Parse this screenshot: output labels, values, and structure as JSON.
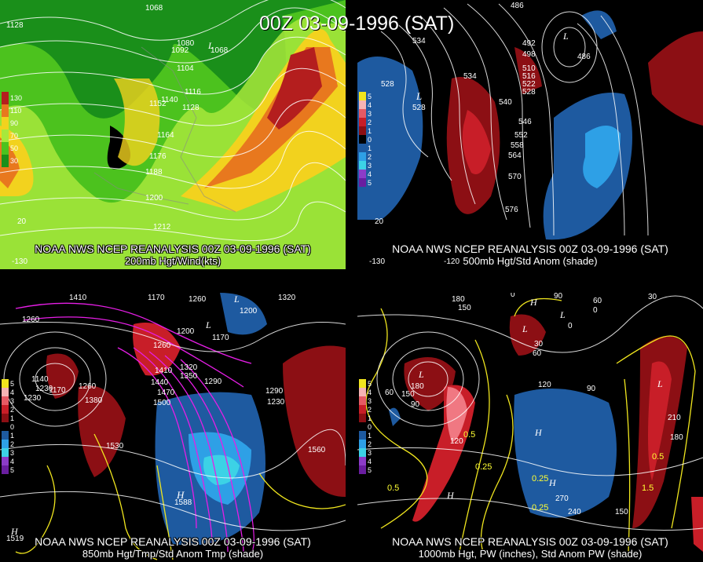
{
  "title": "00Z 03-09-1996 (SAT)",
  "panels": [
    {
      "caption_line1": "NOAA NWS NCEP REANALYSIS 00Z 03-09-1996 (SAT)",
      "caption_line2": "200mb Hgt/Wind(kts)",
      "scale": [
        "130",
        "110",
        "90",
        "70",
        "50",
        "30"
      ],
      "contour_labels": [
        "1068",
        "1128",
        "1080",
        "1092",
        "1068",
        "1104",
        "1116",
        "1140",
        "1152",
        "1128",
        "1164",
        "1176",
        "1188",
        "1200",
        "1212"
      ],
      "axis_labels": [
        "20",
        "-130"
      ]
    },
    {
      "caption_line1": "NOAA NWS NCEP REANALYSIS 00Z 03-09-1996 (SAT)",
      "caption_line2": "500mb Hgt/Std Anom (shade)",
      "scale": [
        "5",
        "4",
        "3",
        "2",
        "1",
        "0",
        "1",
        "2",
        "3",
        "4",
        "5"
      ],
      "contour_labels": [
        "486",
        "534",
        "528",
        "486",
        "492",
        "498",
        "510",
        "516",
        "522",
        "528",
        "534",
        "540",
        "546",
        "552",
        "558",
        "564",
        "570",
        "576",
        "528",
        "522"
      ],
      "axis_labels": [
        "20",
        "-130",
        "-120"
      ]
    },
    {
      "caption_line1": "NOAA NWS NCEP REANALYSIS 00Z 03-09-1996 (SAT)",
      "caption_line2": "850mb Hgt/Tmp/Std Anom Tmp (shade)",
      "scale": [
        "5",
        "4",
        "3",
        "2",
        "1",
        "0",
        "1",
        "2",
        "3",
        "4",
        "5"
      ],
      "contour_labels": [
        "1410",
        "1170",
        "1260",
        "1320",
        "1200",
        "1260",
        "1230",
        "1200",
        "1170",
        "1140",
        "1170",
        "1230",
        "1260",
        "1290",
        "1320",
        "1350",
        "1380",
        "1410",
        "1440",
        "1470",
        "1500",
        "1290",
        "1230",
        "1260",
        "1530",
        "1560",
        "1588",
        "1519"
      ],
      "axis_labels": [
        "20",
        "-130"
      ]
    },
    {
      "caption_line1": "NOAA NWS NCEP REANALYSIS 00Z 03-09-1996 (SAT)",
      "caption_line2": "1000mb Hgt, PW (inches), Std Anom PW (shade)",
      "scale": [
        "5",
        "4",
        "3",
        "2",
        "1",
        "0",
        "1",
        "2",
        "3",
        "4",
        "5"
      ],
      "contour_labels": [
        "180",
        "150",
        "0",
        "90",
        "60",
        "30",
        "0",
        "120",
        "90",
        "60",
        "30",
        "0",
        "180",
        "150",
        "60",
        "90",
        "120",
        "210",
        "180",
        "150",
        "240",
        "270"
      ],
      "pw_labels": [
        "0.5",
        "0.25",
        "0.25",
        "0.25",
        "0.5",
        "1.5",
        "0.5"
      ],
      "axis_labels": [
        "20",
        "-130"
      ]
    }
  ],
  "colors": {
    "background": "#000000",
    "wind_dark_green": "#1a8f1a",
    "wind_green": "#4cc21e",
    "wind_light_green": "#a8e83c",
    "wind_yellow": "#f2d21e",
    "wind_orange": "#e8781e",
    "wind_red": "#b41e1e",
    "anom_pos_dark": "#8c0f14",
    "anom_pos": "#c81e28",
    "anom_pos_light": "#f07882",
    "anom_neg": "#1e5aa0",
    "anom_neg_light": "#2ea0e6",
    "anom_neg_cyan": "#3cd2e6",
    "contour_white": "#ffffff",
    "contour_magenta": "#e61ee6",
    "contour_yellow": "#f0e61e"
  },
  "scale_colors_wind": [
    "#b41e1e",
    "#e8781e",
    "#f2d21e",
    "#a8e83c",
    "#4cc21e",
    "#1a8f1a"
  ],
  "scale_colors_anom": [
    "#f2e61e",
    "#f5b4b4",
    "#e65a64",
    "#c81e28",
    "#8c0f14",
    "#000000",
    "#1e5aa0",
    "#2ea0e6",
    "#3cd2e6",
    "#8c3cc8",
    "#6a1ea0"
  ],
  "icons": [
    "low-pressure-icon",
    "high-pressure-icon"
  ],
  "pressure_letters": {
    "low": "L",
    "high": "H"
  }
}
